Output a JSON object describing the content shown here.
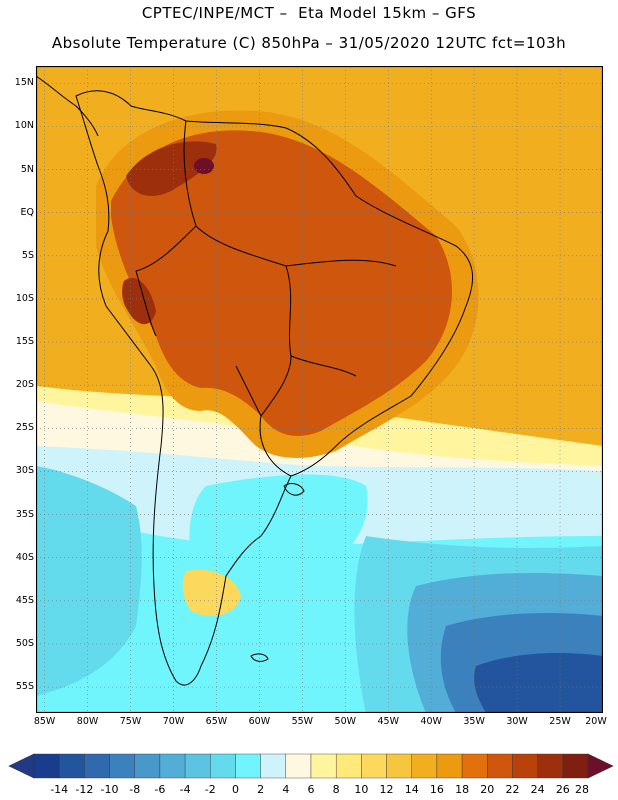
{
  "header": {
    "line1": "CPTEC/INPE/MCT –  Eta Model 15km – GFS",
    "line2": "Absolute Temperature (C) 850hPa – 31/05/2020 12UTC fct=103h"
  },
  "axes": {
    "lat_labels": [
      "15N",
      "10N",
      "5N",
      "EQ",
      "5S",
      "10S",
      "15S",
      "20S",
      "25S",
      "30S",
      "35S",
      "40S",
      "45S",
      "50S",
      "55S"
    ],
    "lat_values": [
      15,
      10,
      5,
      0,
      -5,
      -10,
      -15,
      -20,
      -25,
      -30,
      -35,
      -40,
      -45,
      -50,
      -55
    ],
    "lon_labels": [
      "85W",
      "80W",
      "75W",
      "70W",
      "65W",
      "60W",
      "55W",
      "50W",
      "45W",
      "40W",
      "35W",
      "30W",
      "25W",
      "20W"
    ],
    "lon_values": [
      -85,
      -80,
      -75,
      -70,
      -65,
      -60,
      -55,
      -50,
      -45,
      -40,
      -35,
      -30,
      -25,
      -20
    ],
    "lat_range": [
      -58,
      17
    ],
    "lon_range": [
      -86,
      -20
    ]
  },
  "colorbar": {
    "labels": [
      "-14",
      "-12",
      "-10",
      "-8",
      "-6",
      "-4",
      "-2",
      "0",
      "2",
      "4",
      "6",
      "8",
      "10",
      "12",
      "14",
      "16",
      "18",
      "20",
      "22",
      "24",
      "26",
      "28"
    ],
    "colors": [
      "#1a3c8c",
      "#23549e",
      "#2f6aae",
      "#3b81bd",
      "#4898c9",
      "#52aed6",
      "#5cc4e0",
      "#63dbec",
      "#6ff5fb",
      "#cff3fb",
      "#fff8e0",
      "#fff59e",
      "#ffe97a",
      "#fcd95c",
      "#f6c63f",
      "#f1ae1f",
      "#ec9a10",
      "#e2700c",
      "#cf560d",
      "#b9420b",
      "#9e2f0c",
      "#7e1f10"
    ],
    "end_low": "#223a85",
    "end_high": "#6e0f2a"
  },
  "map_colors": {
    "ocean_tropic": "#f1ae1f",
    "hot_core": "#cf560d",
    "very_hot": "#9e2f0c",
    "peak": "#6e0f2a",
    "warm": "#ec9a10",
    "mild": "#fcd95c",
    "pale": "#fff59e",
    "cream": "#fff8e0",
    "cyan_light": "#cff3fb",
    "cyan": "#6ff5fb",
    "cyan_mid": "#63dbec",
    "blue_light": "#52aed6",
    "blue_mid": "#3b81bd",
    "blue_dark": "#23549e",
    "deep": "#1a3c8c",
    "grid": "#777777",
    "coast": "#000000"
  }
}
